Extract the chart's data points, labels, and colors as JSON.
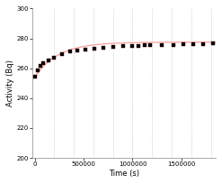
{
  "title": "",
  "xlabel": "Time (s)",
  "ylabel": "Activity (Bq)",
  "xlim": [
    -20000,
    1850000
  ],
  "ylim": [
    200,
    300
  ],
  "yticks": [
    200,
    220,
    240,
    260,
    280,
    300
  ],
  "xticks": [
    0,
    500000,
    1000000,
    1500000
  ],
  "xticklabels": [
    "0",
    "500000",
    "1000000",
    "1500000"
  ],
  "line_color": "#f4a0a0",
  "marker_color": "black",
  "marker_edge_color": "#400000",
  "background_color": "#ffffff",
  "grid_color": "#b0b0b0",
  "x_data": [
    5000,
    28000,
    55000,
    90000,
    140000,
    200000,
    280000,
    360000,
    440000,
    520000,
    610000,
    700000,
    800000,
    900000,
    1000000,
    1060000,
    1120000,
    1180000,
    1300000,
    1420000,
    1520000,
    1620000,
    1720000,
    1820000
  ],
  "y_data": [
    254.5,
    258.5,
    261.5,
    263.5,
    265.5,
    267.0,
    269.5,
    271.0,
    272.0,
    272.8,
    273.3,
    273.8,
    274.3,
    274.7,
    275.0,
    275.2,
    275.3,
    275.4,
    275.6,
    275.8,
    276.0,
    276.2,
    276.4,
    276.5
  ],
  "asymptote": 277.5,
  "A0": 254.0,
  "rate": 4.2e-06,
  "grid_positions": [
    200000,
    400000,
    600000,
    800000,
    1000000,
    1200000,
    1400000,
    1600000,
    1800000
  ]
}
